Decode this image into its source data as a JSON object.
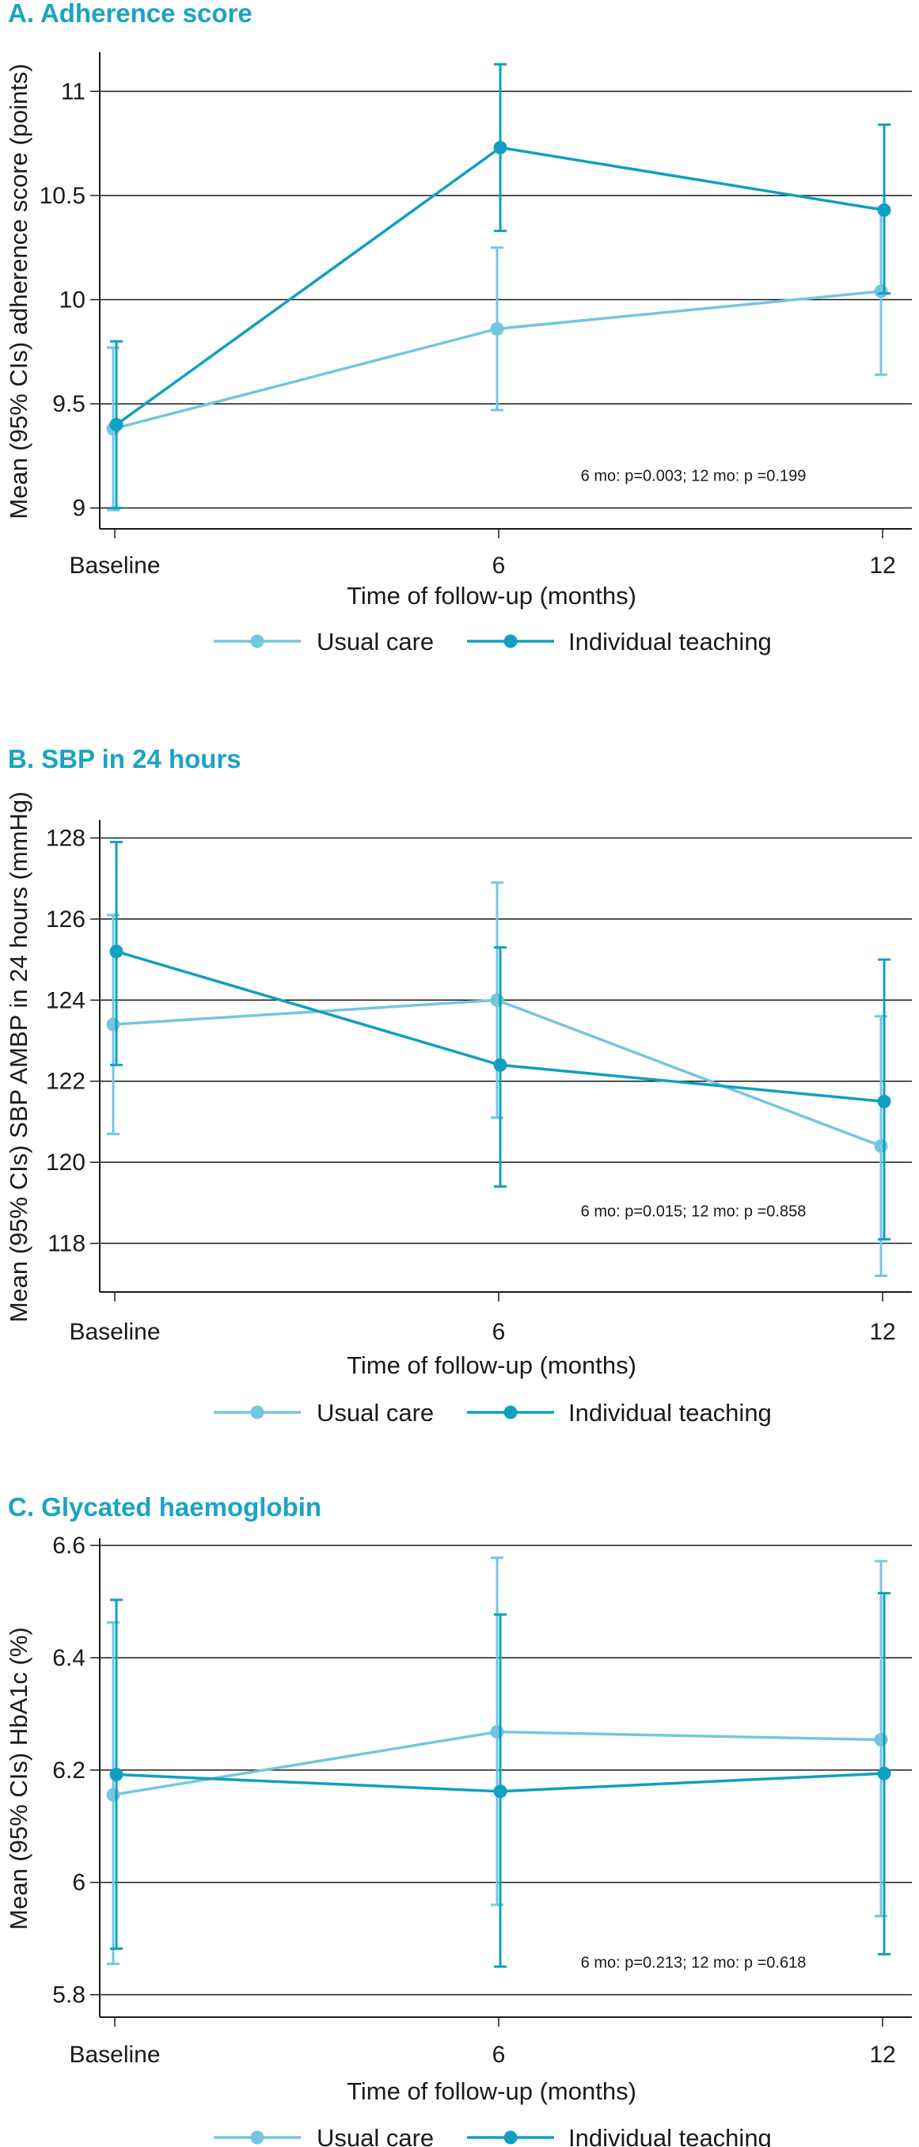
{
  "colors": {
    "usual_care": "#74c6df",
    "individual_teaching": "#119fc1",
    "title": "#1aa3c4"
  },
  "legend": {
    "items": [
      "Usual care",
      "Individual teaching"
    ]
  },
  "chart_data": [
    {
      "type": "line",
      "title": "A. Adherence score",
      "xlabel": "Time of follow-up (months)",
      "ylabel": "Mean (95% CIs) adherence score (points)",
      "categories": [
        "Baseline",
        "6",
        "12"
      ],
      "x": [
        0,
        6,
        12
      ],
      "ylim": [
        8.9,
        11.18
      ],
      "yticks": [
        9,
        9.5,
        10,
        10.5,
        11
      ],
      "ytick_labels": [
        "9",
        "9.5",
        "10",
        "10.5",
        "11"
      ],
      "grid": true,
      "legend_position": "bottom",
      "annotation": "6 mo: p=0.003; 12 mo: p =0.199",
      "series": [
        {
          "name": "Usual care",
          "values": [
            9.38,
            9.86,
            10.04
          ],
          "ci_low": [
            8.99,
            9.47,
            9.64
          ],
          "ci_high": [
            9.77,
            10.25,
            10.44
          ]
        },
        {
          "name": "Individual teaching",
          "values": [
            9.4,
            10.73,
            10.43
          ],
          "ci_low": [
            9.0,
            10.33,
            10.03
          ],
          "ci_high": [
            9.8,
            11.13,
            10.84
          ]
        }
      ]
    },
    {
      "type": "line",
      "title": "B. SBP in 24 hours",
      "xlabel": "Time of follow-up (months)",
      "ylabel": "Mean (95% CIs) SBP AMBP in 24 hours (mmHg)",
      "categories": [
        "Baseline",
        "6",
        "12"
      ],
      "x": [
        0,
        6,
        12
      ],
      "ylim": [
        116.8,
        128.4
      ],
      "yticks": [
        118,
        120,
        122,
        124,
        126,
        128
      ],
      "ytick_labels": [
        "118",
        "120",
        "122",
        "124",
        "126",
        "128"
      ],
      "grid": true,
      "legend_position": "bottom",
      "annotation": "6 mo: p=0.015; 12 mo: p =0.858",
      "series": [
        {
          "name": "Usual care",
          "values": [
            123.4,
            124.0,
            120.4
          ],
          "ci_low": [
            120.7,
            121.1,
            117.2
          ],
          "ci_high": [
            126.1,
            126.9,
            123.6
          ]
        },
        {
          "name": "Individual teaching",
          "values": [
            125.2,
            122.4,
            121.5
          ],
          "ci_low": [
            122.4,
            119.4,
            118.1
          ],
          "ci_high": [
            127.9,
            125.3,
            125.0
          ]
        }
      ]
    },
    {
      "type": "line",
      "title": "C. Glycated haemoglobin",
      "xlabel": "Time of follow-up (months)",
      "ylabel": "Mean (95% CIs) HbA1c (%)",
      "categories": [
        "Baseline",
        "6",
        "12"
      ],
      "x": [
        0,
        6,
        12
      ],
      "ylim": [
        5.76,
        6.61
      ],
      "yticks": [
        5.8,
        6,
        6.2,
        6.4,
        6.6
      ],
      "ytick_labels": [
        "5.8",
        "6",
        "6.2",
        "6.4",
        "6.6"
      ],
      "grid": true,
      "legend_position": "bottom",
      "annotation": "6 mo: p=0.213; 12 mo: p =0.618",
      "series": [
        {
          "name": "Usual care",
          "values": [
            6.156,
            6.268,
            6.254
          ],
          "ci_low": [
            5.855,
            5.96,
            5.94
          ],
          "ci_high": [
            6.463,
            6.578,
            6.572
          ]
        },
        {
          "name": "Individual teaching",
          "values": [
            6.192,
            6.162,
            6.194
          ],
          "ci_low": [
            5.882,
            5.85,
            5.872
          ],
          "ci_high": [
            6.503,
            6.477,
            6.515
          ]
        }
      ]
    }
  ]
}
